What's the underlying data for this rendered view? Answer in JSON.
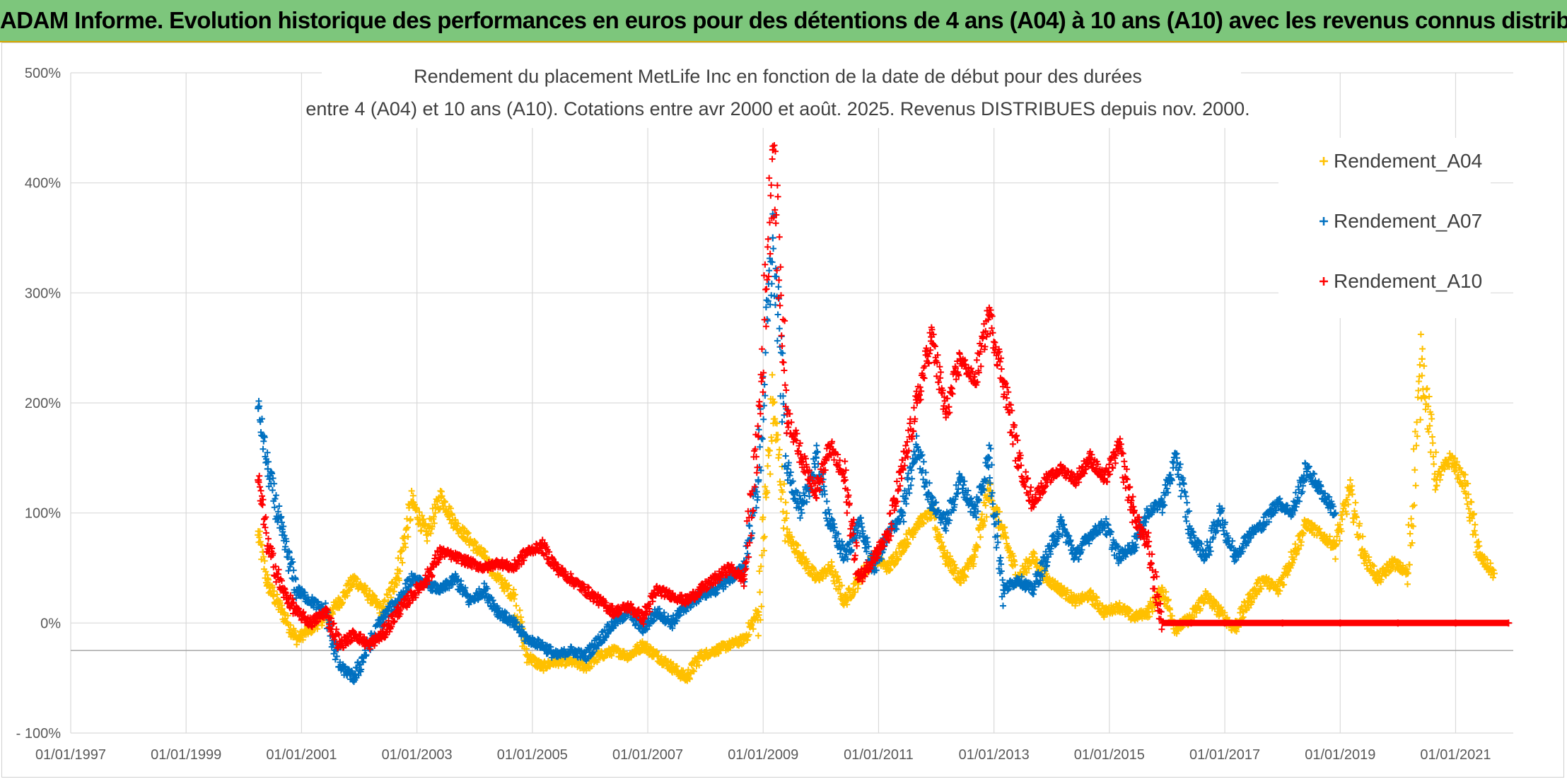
{
  "header": {
    "banner": "ADAM Informe. Evolution historique des performances en euros pour des détentions de 4 ans (A04) à 10 ans (A10) avec les revenus connus distribués"
  },
  "colors": {
    "A04": "#ffc000",
    "A07": "#0070c0",
    "A10": "#ff0000",
    "banner": "#7dc67c"
  },
  "chart_data": {
    "type": "scatter",
    "title_line1": "Rendement du placement MetLife Inc en fonction de la date de début pour des durées",
    "title_line2": "entre 4 (A04) et 10 ans (A10). Cotations entre avr 2000 et août. 2025. Revenus DISTRIBUES depuis nov. 2000.",
    "xlabel": "",
    "ylabel": "",
    "x_range": [
      "1997-01-01",
      "2021-12-31"
    ],
    "y_range": [
      -100,
      500
    ],
    "y_ticks": [
      -100,
      0,
      100,
      200,
      300,
      400,
      500
    ],
    "y_tick_labels": [
      "- 100%",
      "0%",
      "100%",
      "200%",
      "300%",
      "400%",
      "500%"
    ],
    "x_tick_labels": [
      "01/01/1997",
      "01/01/1999",
      "01/01/2001",
      "01/01/2003",
      "01/01/2005",
      "01/01/2007",
      "01/01/2009",
      "01/01/2011",
      "01/01/2013",
      "01/01/2015",
      "01/01/2017",
      "01/01/2019",
      "01/01/2021"
    ],
    "grid": true,
    "legend_position": "top-right",
    "marker": "+",
    "series": [
      {
        "name": "Rendement_A04",
        "points": [
          [
            "2000-04",
            80
          ],
          [
            "2000-06",
            35
          ],
          [
            "2000-09",
            10
          ],
          [
            "2000-12",
            -15
          ],
          [
            "2001-03",
            -5
          ],
          [
            "2001-06",
            5
          ],
          [
            "2001-09",
            20
          ],
          [
            "2001-12",
            40
          ],
          [
            "2002-03",
            25
          ],
          [
            "2002-06",
            10
          ],
          [
            "2002-09",
            45
          ],
          [
            "2002-12",
            110
          ],
          [
            "2003-03",
            80
          ],
          [
            "2003-06",
            115
          ],
          [
            "2003-09",
            90
          ],
          [
            "2003-12",
            75
          ],
          [
            "2004-03",
            60
          ],
          [
            "2004-06",
            40
          ],
          [
            "2004-09",
            25
          ],
          [
            "2004-12",
            -30
          ],
          [
            "2005-03",
            -40
          ],
          [
            "2005-06",
            -35
          ],
          [
            "2005-09",
            -35
          ],
          [
            "2005-12",
            -40
          ],
          [
            "2006-03",
            -30
          ],
          [
            "2006-06",
            -25
          ],
          [
            "2006-09",
            -30
          ],
          [
            "2006-12",
            -20
          ],
          [
            "2007-03",
            -30
          ],
          [
            "2007-06",
            -40
          ],
          [
            "2007-09",
            -50
          ],
          [
            "2007-12",
            -30
          ],
          [
            "2008-03",
            -25
          ],
          [
            "2008-06",
            -20
          ],
          [
            "2008-09",
            -15
          ],
          [
            "2008-12",
            10
          ],
          [
            "2009-03",
            200
          ],
          [
            "2009-06",
            80
          ],
          [
            "2009-09",
            60
          ],
          [
            "2009-12",
            40
          ],
          [
            "2010-03",
            50
          ],
          [
            "2010-06",
            20
          ],
          [
            "2010-09",
            40
          ],
          [
            "2010-12",
            60
          ],
          [
            "2011-03",
            50
          ],
          [
            "2011-06",
            70
          ],
          [
            "2011-09",
            90
          ],
          [
            "2011-12",
            100
          ],
          [
            "2012-03",
            60
          ],
          [
            "2012-06",
            40
          ],
          [
            "2012-09",
            60
          ],
          [
            "2012-12",
            120
          ],
          [
            "2013-03",
            80
          ],
          [
            "2013-06",
            40
          ],
          [
            "2013-09",
            60
          ],
          [
            "2013-12",
            40
          ],
          [
            "2014-03",
            30
          ],
          [
            "2014-06",
            20
          ],
          [
            "2014-09",
            25
          ],
          [
            "2014-12",
            10
          ],
          [
            "2015-03",
            15
          ],
          [
            "2015-06",
            5
          ],
          [
            "2015-09",
            10
          ],
          [
            "2015-12",
            30
          ],
          [
            "2016-03",
            -5
          ],
          [
            "2016-06",
            5
          ],
          [
            "2016-09",
            25
          ],
          [
            "2016-12",
            10
          ],
          [
            "2017-03",
            -5
          ],
          [
            "2017-06",
            20
          ],
          [
            "2017-09",
            40
          ],
          [
            "2017-12",
            30
          ],
          [
            "2018-03",
            60
          ],
          [
            "2018-06",
            90
          ],
          [
            "2018-09",
            80
          ],
          [
            "2018-12",
            70
          ],
          [
            "2019-03",
            120
          ],
          [
            "2019-06",
            60
          ],
          [
            "2019-09",
            40
          ],
          [
            "2019-12",
            55
          ],
          [
            "2020-03",
            45
          ],
          [
            "2020-06",
            240
          ],
          [
            "2020-09",
            130
          ],
          [
            "2020-12",
            150
          ],
          [
            "2021-03",
            125
          ],
          [
            "2021-06",
            60
          ],
          [
            "2021-09",
            45
          ]
        ]
      },
      {
        "name": "Rendement_A07",
        "points": [
          [
            "2000-04",
            195
          ],
          [
            "2000-06",
            140
          ],
          [
            "2000-09",
            80
          ],
          [
            "2000-12",
            30
          ],
          [
            "2001-03",
            20
          ],
          [
            "2001-06",
            10
          ],
          [
            "2001-09",
            -40
          ],
          [
            "2001-12",
            -50
          ],
          [
            "2002-03",
            -20
          ],
          [
            "2002-06",
            5
          ],
          [
            "2002-09",
            20
          ],
          [
            "2002-12",
            40
          ],
          [
            "2003-03",
            35
          ],
          [
            "2003-06",
            30
          ],
          [
            "2003-09",
            40
          ],
          [
            "2003-12",
            20
          ],
          [
            "2004-03",
            30
          ],
          [
            "2004-06",
            10
          ],
          [
            "2004-09",
            0
          ],
          [
            "2004-12",
            -15
          ],
          [
            "2005-03",
            -20
          ],
          [
            "2005-06",
            -30
          ],
          [
            "2005-09",
            -25
          ],
          [
            "2005-12",
            -30
          ],
          [
            "2006-03",
            -15
          ],
          [
            "2006-06",
            0
          ],
          [
            "2006-09",
            10
          ],
          [
            "2006-12",
            -5
          ],
          [
            "2007-03",
            10
          ],
          [
            "2007-06",
            0
          ],
          [
            "2007-09",
            15
          ],
          [
            "2007-12",
            25
          ],
          [
            "2008-03",
            30
          ],
          [
            "2008-06",
            40
          ],
          [
            "2008-09",
            50
          ],
          [
            "2008-12",
            130
          ],
          [
            "2009-03",
            350
          ],
          [
            "2009-06",
            140
          ],
          [
            "2009-09",
            100
          ],
          [
            "2009-12",
            150
          ],
          [
            "2010-03",
            90
          ],
          [
            "2010-06",
            60
          ],
          [
            "2010-09",
            90
          ],
          [
            "2010-12",
            50
          ],
          [
            "2011-03",
            80
          ],
          [
            "2011-06",
            100
          ],
          [
            "2011-09",
            160
          ],
          [
            "2011-12",
            110
          ],
          [
            "2012-03",
            90
          ],
          [
            "2012-06",
            130
          ],
          [
            "2012-09",
            100
          ],
          [
            "2012-12",
            150
          ],
          [
            "2013-03",
            30
          ],
          [
            "2013-06",
            40
          ],
          [
            "2013-09",
            30
          ],
          [
            "2013-12",
            60
          ],
          [
            "2014-03",
            90
          ],
          [
            "2014-06",
            60
          ],
          [
            "2014-09",
            80
          ],
          [
            "2014-12",
            90
          ],
          [
            "2015-03",
            60
          ],
          [
            "2015-06",
            70
          ],
          [
            "2015-09",
            100
          ],
          [
            "2015-12",
            110
          ],
          [
            "2016-03",
            150
          ],
          [
            "2016-06",
            80
          ],
          [
            "2016-09",
            60
          ],
          [
            "2016-12",
            100
          ],
          [
            "2017-03",
            60
          ],
          [
            "2017-06",
            80
          ],
          [
            "2017-09",
            90
          ],
          [
            "2017-12",
            110
          ],
          [
            "2018-03",
            100
          ],
          [
            "2018-06",
            140
          ],
          [
            "2018-09",
            120
          ],
          [
            "2018-12",
            100
          ]
        ]
      },
      {
        "name": "Rendement_A10",
        "points": [
          [
            "2000-04",
            130
          ],
          [
            "2000-06",
            70
          ],
          [
            "2000-09",
            30
          ],
          [
            "2000-12",
            10
          ],
          [
            "2001-03",
            0
          ],
          [
            "2001-06",
            10
          ],
          [
            "2001-09",
            -20
          ],
          [
            "2001-12",
            -10
          ],
          [
            "2002-03",
            -20
          ],
          [
            "2002-06",
            -10
          ],
          [
            "2002-09",
            10
          ],
          [
            "2002-12",
            25
          ],
          [
            "2003-03",
            40
          ],
          [
            "2003-06",
            65
          ],
          [
            "2003-09",
            60
          ],
          [
            "2003-12",
            55
          ],
          [
            "2004-03",
            50
          ],
          [
            "2004-06",
            55
          ],
          [
            "2004-09",
            50
          ],
          [
            "2004-12",
            65
          ],
          [
            "2005-03",
            70
          ],
          [
            "2005-06",
            50
          ],
          [
            "2005-09",
            40
          ],
          [
            "2005-12",
            30
          ],
          [
            "2006-03",
            20
          ],
          [
            "2006-06",
            10
          ],
          [
            "2006-09",
            15
          ],
          [
            "2006-12",
            5
          ],
          [
            "2007-03",
            30
          ],
          [
            "2007-06",
            25
          ],
          [
            "2007-09",
            20
          ],
          [
            "2007-12",
            30
          ],
          [
            "2008-03",
            40
          ],
          [
            "2008-06",
            50
          ],
          [
            "2008-09",
            40
          ],
          [
            "2008-12",
            170
          ],
          [
            "2009-03",
            430
          ],
          [
            "2009-06",
            190
          ],
          [
            "2009-09",
            150
          ],
          [
            "2009-12",
            120
          ],
          [
            "2010-03",
            160
          ],
          [
            "2010-06",
            130
          ],
          [
            "2010-09",
            40
          ],
          [
            "2010-12",
            60
          ],
          [
            "2011-03",
            80
          ],
          [
            "2011-06",
            140
          ],
          [
            "2011-09",
            200
          ],
          [
            "2011-12",
            260
          ],
          [
            "2012-03",
            190
          ],
          [
            "2012-06",
            240
          ],
          [
            "2012-09",
            220
          ],
          [
            "2012-12",
            280
          ],
          [
            "2013-03",
            220
          ],
          [
            "2013-06",
            150
          ],
          [
            "2013-09",
            110
          ],
          [
            "2013-12",
            130
          ],
          [
            "2014-03",
            140
          ],
          [
            "2014-06",
            130
          ],
          [
            "2014-09",
            150
          ],
          [
            "2014-12",
            130
          ],
          [
            "2015-03",
            160
          ],
          [
            "2015-06",
            100
          ],
          [
            "2015-09",
            70
          ],
          [
            "2015-12",
            0
          ],
          [
            "2016-06",
            0
          ],
          [
            "2017-01",
            0
          ],
          [
            "2018-01",
            0
          ],
          [
            "2019-01",
            0
          ],
          [
            "2020-01",
            0
          ],
          [
            "2021-01",
            0
          ],
          [
            "2021-12",
            0
          ]
        ]
      }
    ]
  }
}
